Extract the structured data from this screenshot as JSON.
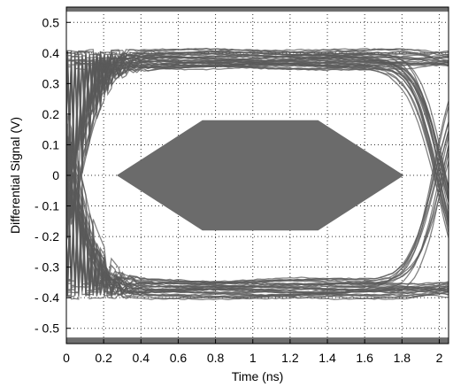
{
  "chart_data": {
    "type": "line",
    "title": "",
    "xlabel": "Time (ns)",
    "ylabel": "Differential Signal (V)",
    "xlim": [
      0,
      2.05
    ],
    "ylim": [
      -0.55,
      0.55
    ],
    "grid": "dotted",
    "x_ticks": [
      {
        "v": 0,
        "label": "0"
      },
      {
        "v": 0.2,
        "label": "0.2"
      },
      {
        "v": 0.4,
        "label": "0.4"
      },
      {
        "v": 0.6,
        "label": "0.6"
      },
      {
        "v": 0.8,
        "label": "0.8"
      },
      {
        "v": 1.0,
        "label": "1"
      },
      {
        "v": 1.2,
        "label": "1.2"
      },
      {
        "v": 1.4,
        "label": "1.4"
      },
      {
        "v": 1.6,
        "label": "1.6"
      },
      {
        "v": 1.8,
        "label": "1.8"
      },
      {
        "v": 2.0,
        "label": "2"
      }
    ],
    "y_ticks": [
      {
        "v": 0.5,
        "label": "0.5"
      },
      {
        "v": 0.4,
        "label": "0.4"
      },
      {
        "v": 0.3,
        "label": "0.3"
      },
      {
        "v": 0.2,
        "label": "0.2"
      },
      {
        "v": 0.1,
        "label": "0.1"
      },
      {
        "v": 0.0,
        "label": "0"
      },
      {
        "v": -0.1,
        "label": "- 0.1"
      },
      {
        "v": -0.2,
        "label": "- 0.2"
      },
      {
        "v": -0.3,
        "label": "- 0.3"
      },
      {
        "v": -0.4,
        "label": "- 0.4"
      },
      {
        "v": -0.5,
        "label": "- 0.5"
      }
    ],
    "eye": {
      "high_level": 0.38,
      "low_level": -0.37,
      "crossing_1_x": 0.05,
      "crossing_2_x": 2.0,
      "spread": 0.03
    },
    "mask_polygon": [
      {
        "x": 0.27,
        "y": 0.0
      },
      {
        "x": 0.73,
        "y": 0.18
      },
      {
        "x": 1.35,
        "y": 0.18
      },
      {
        "x": 1.81,
        "y": 0.0
      },
      {
        "x": 1.35,
        "y": -0.18
      },
      {
        "x": 0.73,
        "y": -0.18
      }
    ],
    "top_limit_band": [
      0.535,
      0.55
    ],
    "bottom_limit_band": [
      -0.55,
      -0.53
    ],
    "colors": {
      "trace": "#5a5a5a",
      "mask": "#6b6b6b",
      "limit_band": "#6e6e6e",
      "grid": "#333333"
    }
  }
}
